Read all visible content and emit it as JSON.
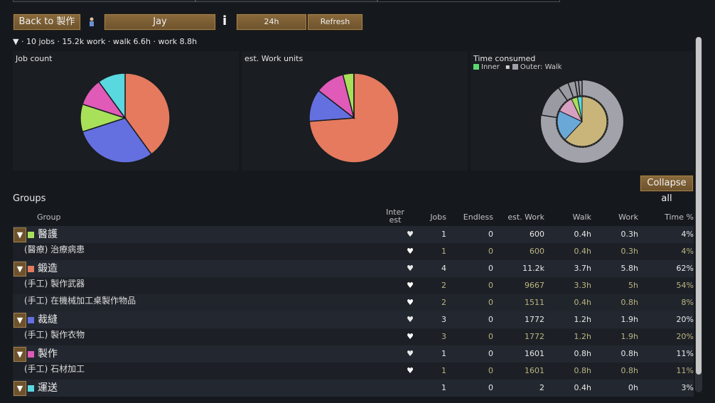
{
  "toolbar": {
    "back_label": "Back to 製作",
    "pawn_name": "Jay",
    "info_glyph": "i",
    "range_label": "24h",
    "refresh_label": "Refresh",
    "collapse_label": "Collapse all"
  },
  "summary": "▼ · 10 jobs · 15.2k work · walk 6.6h · work 8.8h",
  "groups_label": "Groups",
  "columns": {
    "group": "Group",
    "interest": "Inter est",
    "jobs": "Jobs",
    "endless": "Endless",
    "est_work": "est. Work",
    "walk": "Walk",
    "work": "Work",
    "time_pct": "Time %"
  },
  "colors": {
    "醫護": "#a8e05a",
    "鍛造": "#e57a5e",
    "裁縫": "#6470e0",
    "製作": "#e05ab8",
    "運送": "#5ad8e0"
  },
  "chart_data": [
    {
      "type": "pie",
      "title": "Job count",
      "categories": [
        "鍛造",
        "裁縫",
        "醫護",
        "製作",
        "運送"
      ],
      "values": [
        4,
        3,
        1,
        1,
        1
      ]
    },
    {
      "type": "pie",
      "title": "est. Work units",
      "categories": [
        "鍛造",
        "裁縫",
        "製作",
        "醫護",
        "運送"
      ],
      "values": [
        11200,
        1772,
        1601,
        600,
        2
      ]
    },
    {
      "type": "pie",
      "title": "Time consumed",
      "legend": [
        "Inner",
        "Outer: Walk"
      ],
      "inner": {
        "values": [
          62,
          20,
          11,
          4,
          3
        ]
      },
      "outer": {
        "values": [
          3.7,
          1.2,
          0.8,
          0.4,
          0.4
        ]
      }
    }
  ],
  "rows": [
    {
      "kind": "group",
      "name": "醫護",
      "color": "#a8e05a",
      "interest": "♥",
      "jobs": "1",
      "endless": "0",
      "est_work": "600",
      "walk": "0.4h",
      "work": "0.3h",
      "time_pct": "4%"
    },
    {
      "kind": "sub",
      "name": "(醫療) 治療病患",
      "interest": "♥",
      "jobs": "1",
      "endless": "0",
      "est_work": "600",
      "walk": "0.4h",
      "work": "0.3h",
      "time_pct": "4%"
    },
    {
      "kind": "group",
      "name": "鍛造",
      "color": "#e57a5e",
      "interest": "♥",
      "jobs": "4",
      "endless": "0",
      "est_work": "11.2k",
      "walk": "3.7h",
      "work": "5.8h",
      "time_pct": "62%"
    },
    {
      "kind": "sub",
      "name": "(手工) 製作武器",
      "interest": "♥",
      "jobs": "2",
      "endless": "0",
      "est_work": "9667",
      "walk": "3.3h",
      "work": "5h",
      "time_pct": "54%"
    },
    {
      "kind": "sub",
      "name": "(手工) 在機械加工桌製作物品",
      "interest": "♥",
      "jobs": "2",
      "endless": "0",
      "est_work": "1511",
      "walk": "0.4h",
      "work": "0.8h",
      "time_pct": "8%"
    },
    {
      "kind": "group",
      "name": "裁縫",
      "color": "#6470e0",
      "interest": "♥",
      "jobs": "3",
      "endless": "0",
      "est_work": "1772",
      "walk": "1.2h",
      "work": "1.9h",
      "time_pct": "20%"
    },
    {
      "kind": "sub",
      "name": "(手工) 製作衣物",
      "interest": "♥",
      "jobs": "3",
      "endless": "0",
      "est_work": "1772",
      "walk": "1.2h",
      "work": "1.9h",
      "time_pct": "20%"
    },
    {
      "kind": "group",
      "name": "製作",
      "color": "#e05ab8",
      "interest": "♥",
      "jobs": "1",
      "endless": "0",
      "est_work": "1601",
      "walk": "0.8h",
      "work": "0.8h",
      "time_pct": "11%"
    },
    {
      "kind": "sub",
      "name": "(手工) 石材加工",
      "interest": "♥",
      "jobs": "1",
      "endless": "0",
      "est_work": "1601",
      "walk": "0.8h",
      "work": "0.8h",
      "time_pct": "11%"
    },
    {
      "kind": "group",
      "name": "運送",
      "color": "#5ad8e0",
      "interest": "",
      "jobs": "1",
      "endless": "0",
      "est_work": "2",
      "walk": "0.4h",
      "work": "0h",
      "time_pct": "3%"
    }
  ]
}
